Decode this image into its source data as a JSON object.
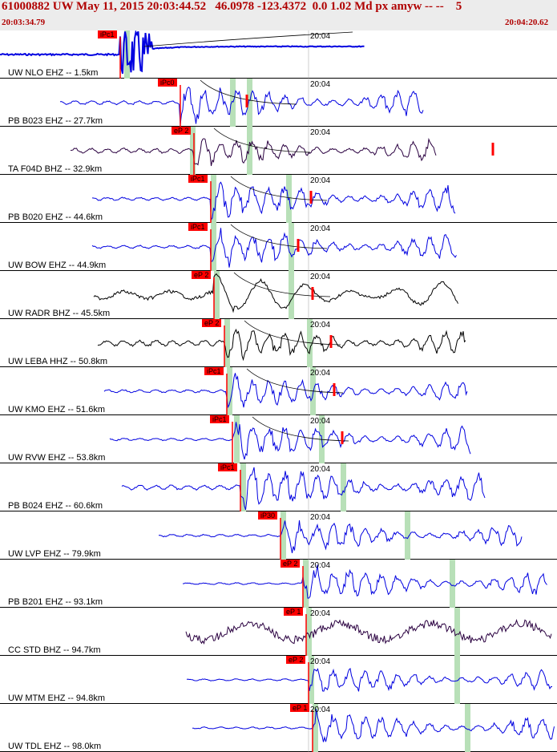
{
  "header": {
    "title": "61000882 UW May 11, 2015 20:03:44.52   46.0978 -123.4372  0.0 1.02 Md px amyw -- --    5",
    "start_time": "20:03:34.79",
    "end_time": "20:04:20.62"
  },
  "colors": {
    "trace_blue": "#0000e0",
    "trace_black": "#000000",
    "trace_purple": "#2a0040",
    "pick_red": "#ff0000",
    "phase_green": "#b8e0b8",
    "header_bg": "#ececec"
  },
  "traces": [
    {
      "label": "UW NLO EHZ -- 1.5km",
      "pick": "iPc1",
      "minute_tick": "20:04",
      "color": "blue"
    },
    {
      "label": "PB B023 EHZ -- 27.7km",
      "pick": "iPc0",
      "minute_tick": "20:04",
      "color": "blue"
    },
    {
      "label": "TA F04D BHZ -- 32.9km",
      "pick": "eP 2",
      "minute_tick": "20:04",
      "color": "purple"
    },
    {
      "label": "PB B020 EHZ -- 44.6km",
      "pick": "iPc1",
      "minute_tick": "20:04",
      "color": "blue"
    },
    {
      "label": "UW BOW EHZ -- 44.9km",
      "pick": "iPc1",
      "minute_tick": "20:04",
      "color": "blue"
    },
    {
      "label": "UW RADR BHZ -- 45.5km",
      "pick": "eP 2",
      "minute_tick": "20:04",
      "color": "black"
    },
    {
      "label": "UW LEBA HHZ -- 50.8km",
      "pick": "eP 2",
      "minute_tick": "20:04",
      "color": "black"
    },
    {
      "label": "UW KMO EHZ -- 51.6km",
      "pick": "iPc1",
      "minute_tick": "20:04",
      "color": "blue"
    },
    {
      "label": "UW RVW EHZ -- 53.8km",
      "pick": "iPc1",
      "minute_tick": "20:04",
      "color": "blue"
    },
    {
      "label": "PB B024 EHZ -- 60.6km",
      "pick": "iPc1",
      "minute_tick": "20:04",
      "color": "blue"
    },
    {
      "label": "UW LVP EHZ -- 79.9km",
      "pick": "iP30",
      "minute_tick": "20:04",
      "color": "blue"
    },
    {
      "label": "PB B201 EHZ -- 93.1km",
      "pick": "eP 2",
      "minute_tick": "20:04",
      "color": "blue"
    },
    {
      "label": "CC STD BHZ -- 94.7km",
      "pick": "eP 1",
      "minute_tick": "20:04",
      "color": "purple"
    },
    {
      "label": "UW MTM EHZ -- 94.8km",
      "pick": "eP 2",
      "minute_tick": "20:04",
      "color": "blue"
    },
    {
      "label": "UW TDL EHZ -- 98.0km",
      "pick": "eP 1",
      "minute_tick": "20:04",
      "color": "blue"
    }
  ]
}
